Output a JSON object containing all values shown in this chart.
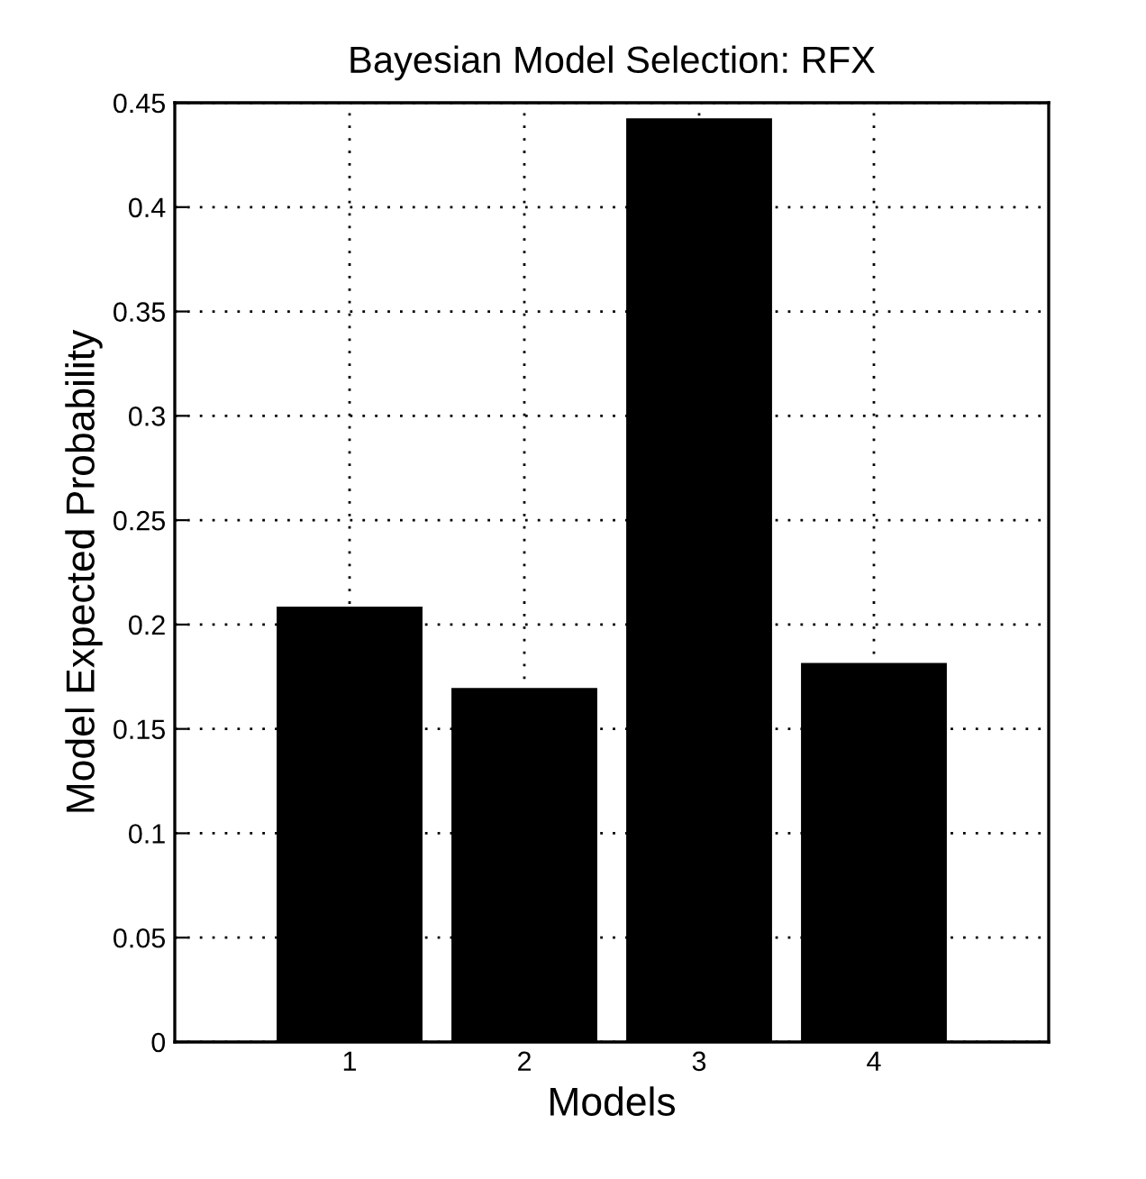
{
  "chart_data": {
    "type": "bar",
    "title": "Bayesian Model Selection: RFX",
    "xlabel": "Models",
    "ylabel": "Model Expected Probability",
    "categories": [
      "1",
      "2",
      "3",
      "4"
    ],
    "values": [
      0.208,
      0.169,
      0.442,
      0.181
    ],
    "color": "#000000",
    "ylim": [
      0,
      0.45
    ],
    "yticks": [
      0,
      0.05,
      0.1,
      0.15,
      0.2,
      0.25,
      0.3,
      0.35,
      0.4,
      0.45
    ],
    "grid": true
  }
}
